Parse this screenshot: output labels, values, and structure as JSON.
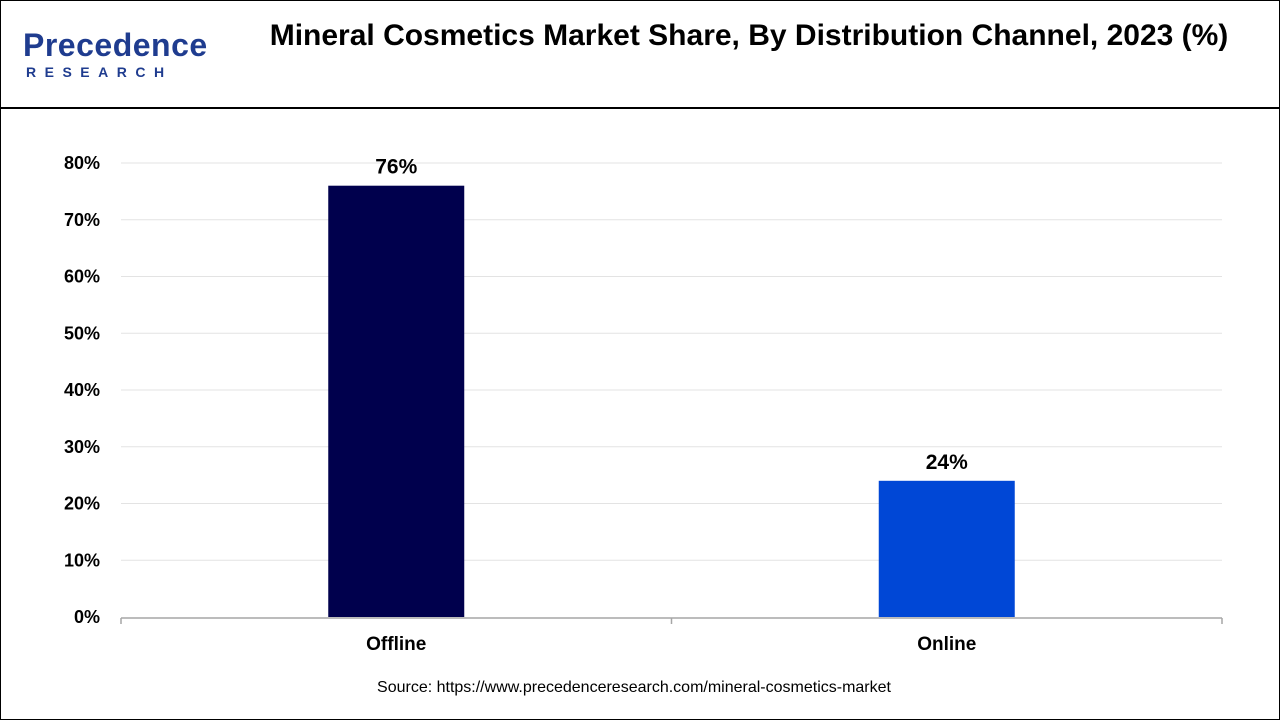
{
  "header": {
    "title": "Mineral Cosmetics Market Share, By Distribution Channel, 2023 (%)",
    "logo": {
      "brand": "Precedence",
      "sub": "RESEARCH",
      "color": "#1f3c8f"
    }
  },
  "source": "Source: https://www.precedenceresearch.com/mineral-cosmetics-market",
  "chart_data": {
    "type": "bar",
    "title": "Mineral Cosmetics Market Share, By Distribution Channel, 2023 (%)",
    "categories": [
      "Offline",
      "Online"
    ],
    "values": [
      76,
      24
    ],
    "data_labels": [
      "76%",
      "24%"
    ],
    "colors": [
      "#00004d",
      "#0047d6"
    ],
    "xlabel": "",
    "ylabel": "",
    "ylim": [
      0,
      80
    ],
    "yticks": [
      0,
      10,
      20,
      30,
      40,
      50,
      60,
      70,
      80
    ],
    "ytick_labels": [
      "0%",
      "10%",
      "20%",
      "30%",
      "40%",
      "50%",
      "60%",
      "70%",
      "80%"
    ],
    "grid": true,
    "legend": "none"
  }
}
